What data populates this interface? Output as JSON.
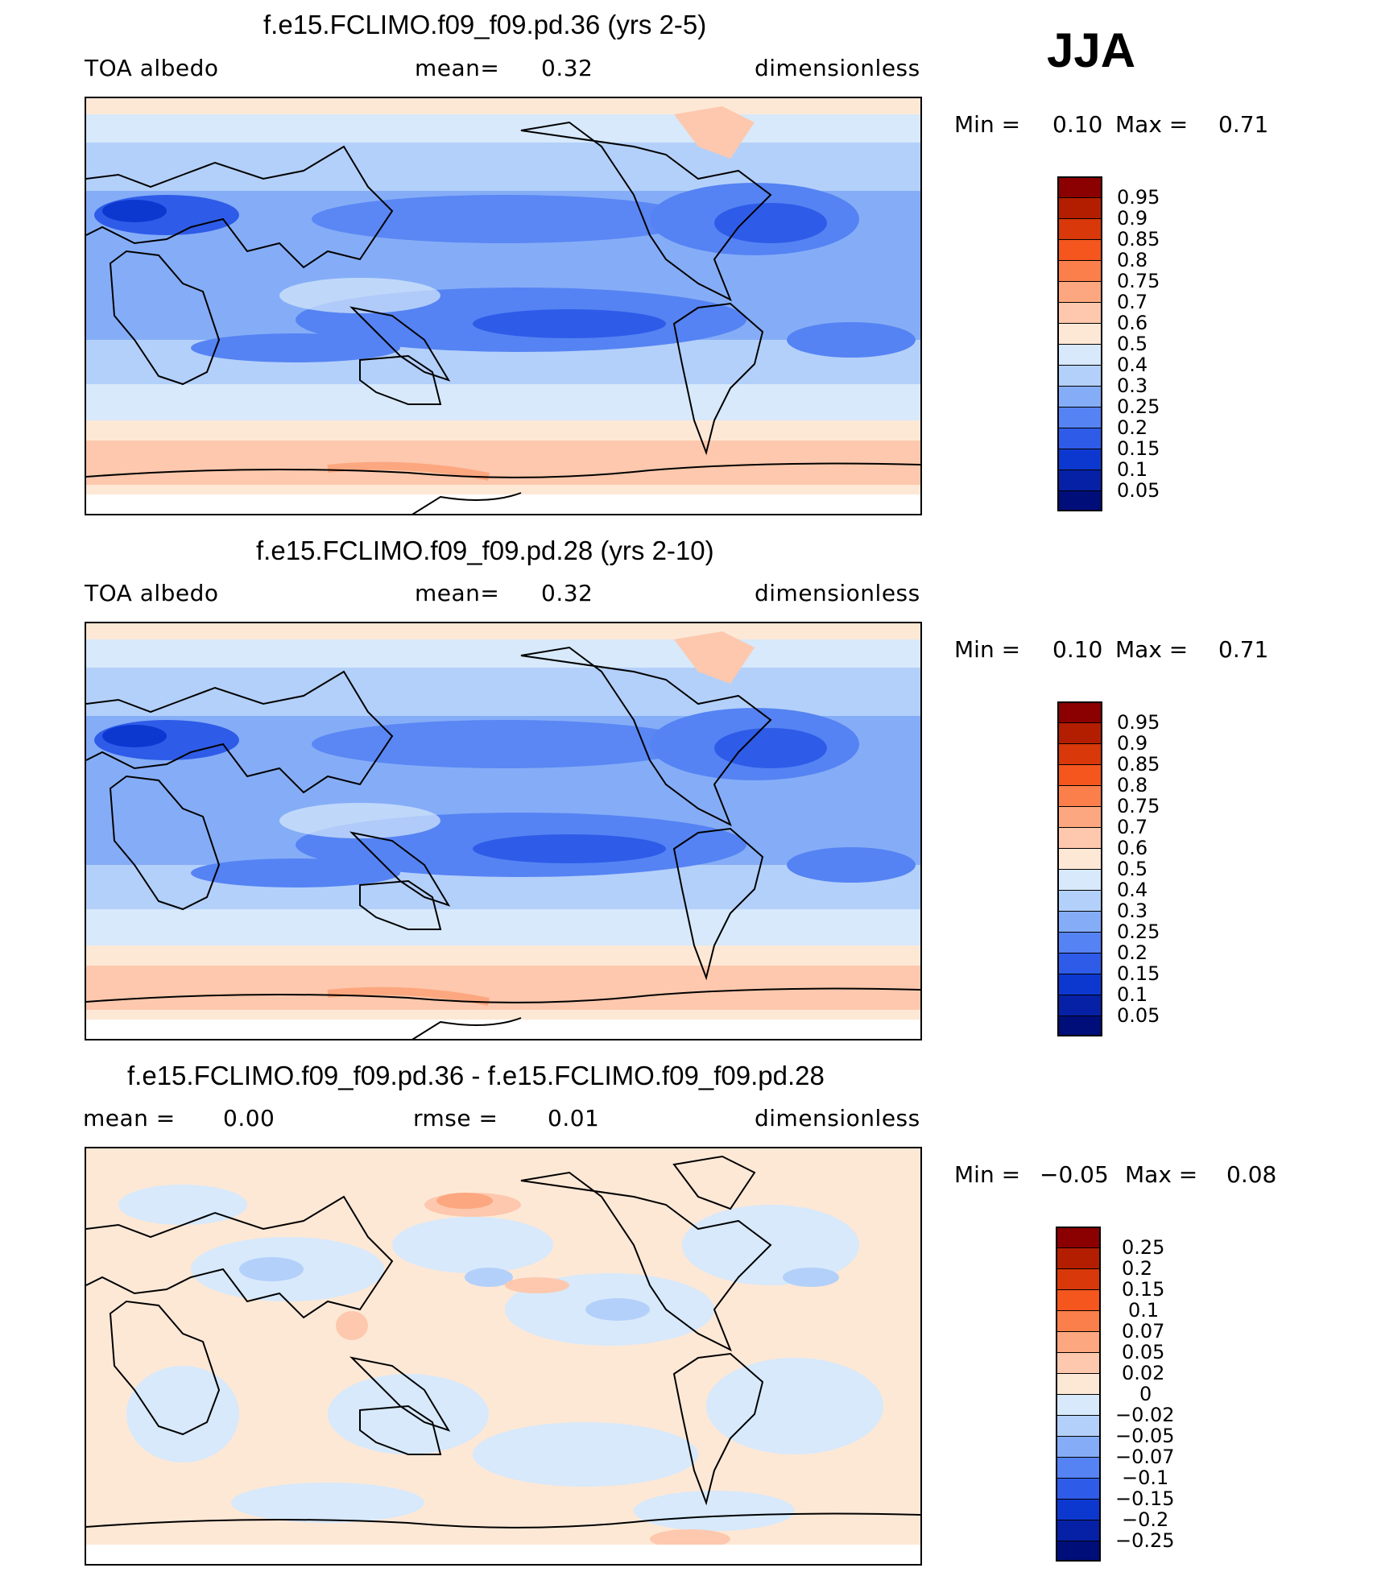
{
  "season": "JJA",
  "panels": [
    {
      "title": "f.e15.FCLIMO.f09_f09.pd.36 (yrs 2-5)",
      "left_label": "TOA albedo",
      "mid_label": "mean=",
      "mid_value": "0.32",
      "right_label": "dimensionless",
      "min_label": "Min =",
      "min_value": "0.10",
      "max_label": "Max =",
      "max_value": "0.71",
      "legend_labels": [
        "0.95",
        "0.9",
        "0.85",
        "0.8",
        "0.75",
        "0.7",
        "0.6",
        "0.5",
        "0.4",
        "0.3",
        "0.25",
        "0.2",
        "0.15",
        "0.1",
        "0.05"
      ]
    },
    {
      "title": "f.e15.FCLIMO.f09_f09.pd.28 (yrs 2-10)",
      "left_label": "TOA albedo",
      "mid_label": "mean=",
      "mid_value": "0.32",
      "right_label": "dimensionless",
      "min_label": "Min =",
      "min_value": "0.10",
      "max_label": "Max =",
      "max_value": "0.71",
      "legend_labels": [
        "0.95",
        "0.9",
        "0.85",
        "0.8",
        "0.75",
        "0.7",
        "0.6",
        "0.5",
        "0.4",
        "0.3",
        "0.25",
        "0.2",
        "0.15",
        "0.1",
        "0.05"
      ]
    },
    {
      "title": "f.e15.FCLIMO.f09_f09.pd.36 - f.e15.FCLIMO.f09_f09.pd.28",
      "left_label": "mean =",
      "left_value": "0.00",
      "mid_label": "rmse =",
      "mid_value": "0.01",
      "right_label": "dimensionless",
      "min_label": "Min =",
      "min_value": "−0.05",
      "max_label": "Max =",
      "max_value": "0.08",
      "legend_labels": [
        "0.25",
        "0.2",
        "0.15",
        "0.1",
        "0.07",
        "0.05",
        "0.02",
        "0",
        "−0.02",
        "−0.05",
        "−0.07",
        "−0.1",
        "−0.15",
        "−0.2",
        "−0.25"
      ]
    }
  ],
  "colors": {
    "scale": [
      "#8b0000",
      "#b41e00",
      "#d8380a",
      "#f4561e",
      "#fa7f4a",
      "#fca77f",
      "#fdc8ad",
      "#fde8d6",
      "#d7e9fb",
      "#b3d0fa",
      "#85adf7",
      "#5583f3",
      "#2e5ce8",
      "#0d38d0",
      "#0621a6",
      "#000e7a"
    ]
  }
}
